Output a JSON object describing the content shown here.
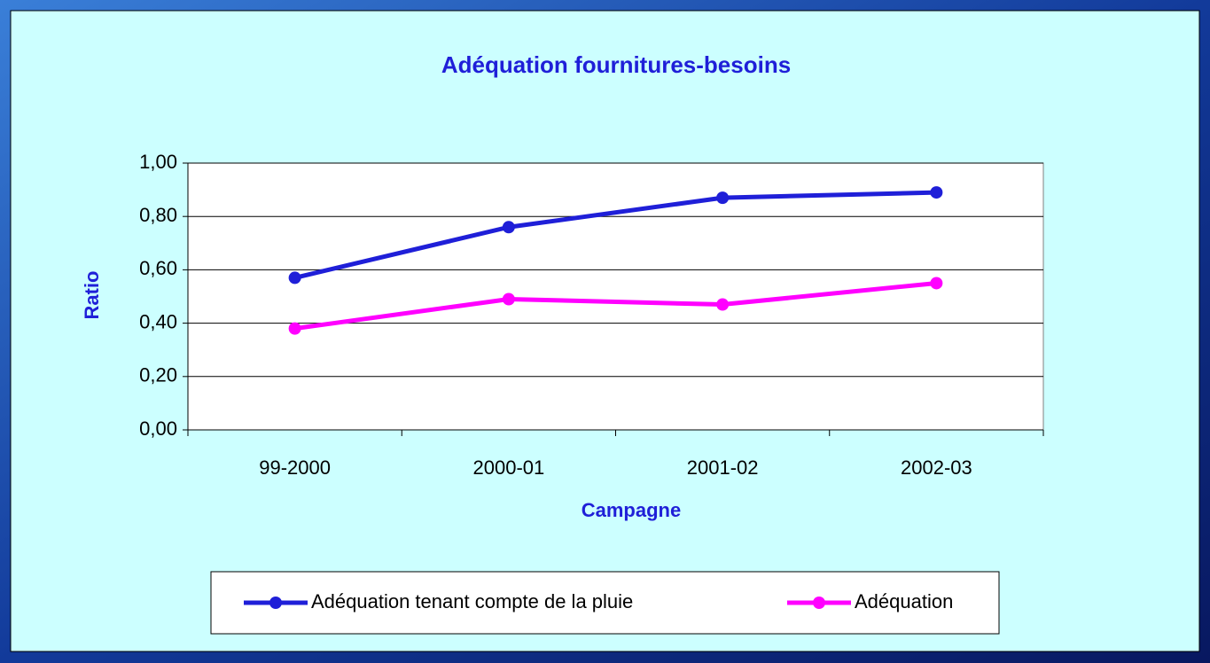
{
  "chart_data": {
    "type": "line",
    "title": "Adéquation fournitures-besoins",
    "x_label": "Campagne",
    "y_label": "Ratio",
    "categories": [
      "99-2000",
      "2000-01",
      "2001-02",
      "2002-03"
    ],
    "series": [
      {
        "name": "Adéquation tenant compte de la pluie",
        "color": "#1f1fd8",
        "values": [
          0.57,
          0.76,
          0.87,
          0.89
        ]
      },
      {
        "name": "Adéquation",
        "color": "#ff00ff",
        "values": [
          0.38,
          0.49,
          0.47,
          0.55
        ]
      }
    ],
    "ylim": [
      0,
      1
    ],
    "yticks": [
      {
        "value": 0,
        "label": "0,00"
      },
      {
        "value": 0.2,
        "label": "0,20"
      },
      {
        "value": 0.4,
        "label": "0,40"
      },
      {
        "value": 0.6,
        "label": "0,60"
      },
      {
        "value": 0.8,
        "label": "0,80"
      },
      {
        "value": 1,
        "label": "1,00"
      }
    ],
    "grid": true,
    "legend": "bottom"
  }
}
